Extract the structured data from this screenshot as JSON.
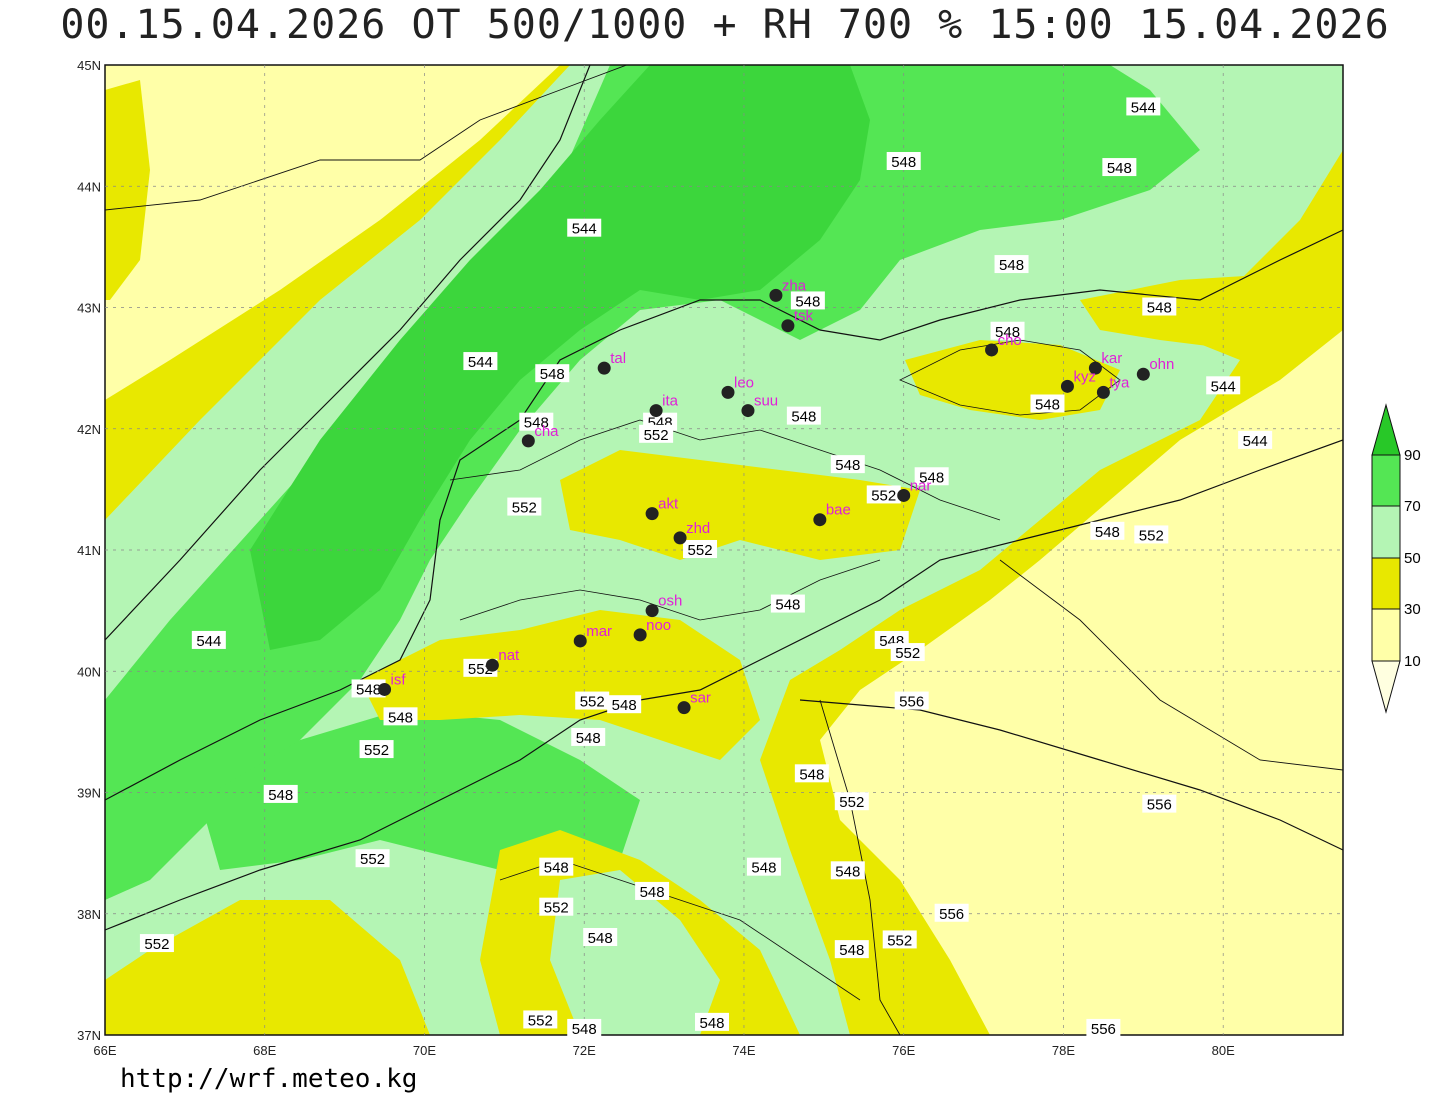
{
  "title": "00.15.04.2026 OT 500/1000 + RH 700 % 15:00 15.04.2026",
  "footer": "http://wrf.meteo.kg",
  "colors": {
    "rh_10_30": "#ffffa8",
    "rh_30_50": "#e8e800",
    "rh_50_70": "#b4f5b4",
    "rh_70_90": "#54e654",
    "rh_90": "#28c828",
    "station": "#222222",
    "station_label": "#e020d8"
  },
  "map": {
    "lon_range": [
      66,
      81.5
    ],
    "lat_range": [
      37,
      45
    ],
    "lon_labels": [
      "66E",
      "68E",
      "70E",
      "72E",
      "74E",
      "76E",
      "78E",
      "80E"
    ],
    "lat_labels": [
      "37N",
      "38N",
      "39N",
      "40N",
      "41N",
      "42N",
      "43N",
      "44N",
      "45N"
    ],
    "stations": [
      {
        "code": "zha",
        "lon": 74.4,
        "lat": 43.1
      },
      {
        "code": "tsk",
        "lon": 74.55,
        "lat": 42.85
      },
      {
        "code": "tal",
        "lon": 72.25,
        "lat": 42.5
      },
      {
        "code": "leo",
        "lon": 73.8,
        "lat": 42.3
      },
      {
        "code": "ita",
        "lon": 72.9,
        "lat": 42.15
      },
      {
        "code": "suu",
        "lon": 74.05,
        "lat": 42.15
      },
      {
        "code": "cha",
        "lon": 71.3,
        "lat": 41.9
      },
      {
        "code": "cho",
        "lon": 77.1,
        "lat": 42.65
      },
      {
        "code": "kar",
        "lon": 78.4,
        "lat": 42.5
      },
      {
        "code": "ohn",
        "lon": 79.0,
        "lat": 42.45
      },
      {
        "code": "kyz",
        "lon": 78.05,
        "lat": 42.35
      },
      {
        "code": "tya",
        "lon": 78.5,
        "lat": 42.3
      },
      {
        "code": "nar",
        "lon": 76.0,
        "lat": 41.45
      },
      {
        "code": "akt",
        "lon": 72.85,
        "lat": 41.3
      },
      {
        "code": "bae",
        "lon": 74.95,
        "lat": 41.25
      },
      {
        "code": "zhd",
        "lon": 73.2,
        "lat": 41.1
      },
      {
        "code": "osh",
        "lon": 72.85,
        "lat": 40.5
      },
      {
        "code": "mar",
        "lon": 71.95,
        "lat": 40.25
      },
      {
        "code": "noo",
        "lon": 72.7,
        "lat": 40.3
      },
      {
        "code": "nat",
        "lon": 70.85,
        "lat": 40.05
      },
      {
        "code": "isf",
        "lon": 69.5,
        "lat": 39.85
      },
      {
        "code": "sar",
        "lon": 73.25,
        "lat": 39.7
      }
    ],
    "contour_labels": [
      {
        "text": "544",
        "lon": 79.0,
        "lat": 44.65
      },
      {
        "text": "548",
        "lon": 76.0,
        "lat": 44.2
      },
      {
        "text": "548",
        "lon": 78.7,
        "lat": 44.15
      },
      {
        "text": "544",
        "lon": 72.0,
        "lat": 43.65
      },
      {
        "text": "548",
        "lon": 77.35,
        "lat": 43.35
      },
      {
        "text": "548",
        "lon": 74.8,
        "lat": 43.05
      },
      {
        "text": "548",
        "lon": 79.2,
        "lat": 43.0
      },
      {
        "text": "548",
        "lon": 77.3,
        "lat": 42.8
      },
      {
        "text": "544",
        "lon": 70.7,
        "lat": 42.55
      },
      {
        "text": "548",
        "lon": 71.6,
        "lat": 42.45
      },
      {
        "text": "548",
        "lon": 77.8,
        "lat": 42.2
      },
      {
        "text": "544",
        "lon": 80.0,
        "lat": 42.35
      },
      {
        "text": "548",
        "lon": 71.4,
        "lat": 42.05
      },
      {
        "text": "548",
        "lon": 72.95,
        "lat": 42.05
      },
      {
        "text": "548",
        "lon": 74.75,
        "lat": 42.1
      },
      {
        "text": "552",
        "lon": 72.9,
        "lat": 41.95
      },
      {
        "text": "544",
        "lon": 80.4,
        "lat": 41.9
      },
      {
        "text": "548",
        "lon": 75.3,
        "lat": 41.7
      },
      {
        "text": "548",
        "lon": 76.35,
        "lat": 41.6
      },
      {
        "text": "552",
        "lon": 75.75,
        "lat": 41.45
      },
      {
        "text": "552",
        "lon": 71.25,
        "lat": 41.35
      },
      {
        "text": "548",
        "lon": 78.55,
        "lat": 41.15
      },
      {
        "text": "552",
        "lon": 79.1,
        "lat": 41.12
      },
      {
        "text": "552",
        "lon": 73.45,
        "lat": 41.0
      },
      {
        "text": "548",
        "lon": 74.55,
        "lat": 40.55
      },
      {
        "text": "544",
        "lon": 67.3,
        "lat": 40.25
      },
      {
        "text": "548",
        "lon": 75.85,
        "lat": 40.25
      },
      {
        "text": "552",
        "lon": 76.05,
        "lat": 40.15
      },
      {
        "text": "552",
        "lon": 70.7,
        "lat": 40.02
      },
      {
        "text": "548",
        "lon": 69.3,
        "lat": 39.85
      },
      {
        "text": "556",
        "lon": 76.1,
        "lat": 39.75
      },
      {
        "text": "552",
        "lon": 72.1,
        "lat": 39.75
      },
      {
        "text": "548",
        "lon": 72.5,
        "lat": 39.72
      },
      {
        "text": "548",
        "lon": 69.7,
        "lat": 39.62
      },
      {
        "text": "548",
        "lon": 72.05,
        "lat": 39.45
      },
      {
        "text": "552",
        "lon": 69.4,
        "lat": 39.35
      },
      {
        "text": "548",
        "lon": 74.85,
        "lat": 39.15
      },
      {
        "text": "548",
        "lon": 68.2,
        "lat": 38.98
      },
      {
        "text": "552",
        "lon": 75.35,
        "lat": 38.92
      },
      {
        "text": "556",
        "lon": 79.2,
        "lat": 38.9
      },
      {
        "text": "552",
        "lon": 69.35,
        "lat": 38.45
      },
      {
        "text": "548",
        "lon": 71.65,
        "lat": 38.38
      },
      {
        "text": "548",
        "lon": 74.25,
        "lat": 38.38
      },
      {
        "text": "548",
        "lon": 75.3,
        "lat": 38.35
      },
      {
        "text": "548",
        "lon": 72.85,
        "lat": 38.18
      },
      {
        "text": "552",
        "lon": 71.65,
        "lat": 38.05
      },
      {
        "text": "556",
        "lon": 76.6,
        "lat": 38.0
      },
      {
        "text": "548",
        "lon": 72.2,
        "lat": 37.8
      },
      {
        "text": "552",
        "lon": 75.95,
        "lat": 37.78
      },
      {
        "text": "552",
        "lon": 66.65,
        "lat": 37.75
      },
      {
        "text": "548",
        "lon": 75.35,
        "lat": 37.7
      },
      {
        "text": "552",
        "lon": 71.45,
        "lat": 37.12
      },
      {
        "text": "548",
        "lon": 72.0,
        "lat": 37.05
      },
      {
        "text": "548",
        "lon": 73.6,
        "lat": 37.1
      },
      {
        "text": "556",
        "lon": 78.5,
        "lat": 37.05
      }
    ]
  },
  "colorbar": {
    "labels": [
      "10",
      "30",
      "50",
      "70",
      "90"
    ]
  }
}
